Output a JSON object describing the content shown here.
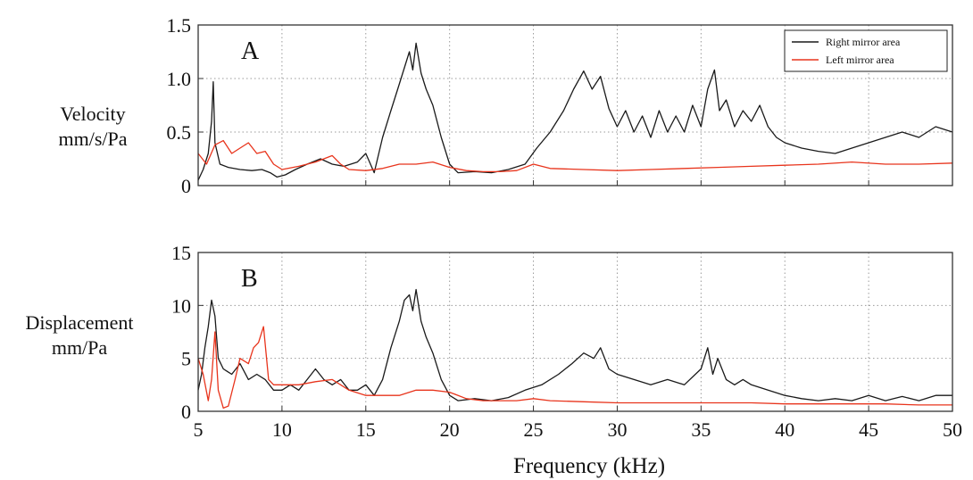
{
  "figure": {
    "xlabel": "Frequency (kHz)",
    "colors": {
      "series_1": "#1a1a1a",
      "series_2": "#e8341c",
      "grid": "#9a9a9a",
      "frame": "#333333"
    }
  },
  "panels": [
    {
      "letter": "A",
      "ylabel_line1": "Velocity",
      "ylabel_line2": "mm/s/Pa",
      "legend": [
        "Right mirror area",
        "Left mirror area"
      ]
    },
    {
      "letter": "B",
      "ylabel_line1": "Displacement",
      "ylabel_line2": "mm/Pa",
      "legend": []
    }
  ],
  "chart_data": [
    {
      "type": "line",
      "title": "A",
      "xlabel": "",
      "ylabel": "Velocity mm/s/Pa",
      "xlim": [
        5,
        50
      ],
      "ylim": [
        0,
        1.5
      ],
      "xticks": [
        5,
        10,
        15,
        20,
        25,
        30,
        35,
        40,
        45,
        50
      ],
      "yticks": [
        0,
        0.5,
        1.0,
        1.5
      ],
      "ytick_labels": [
        "0",
        "0.5",
        "1.0",
        "1.5"
      ],
      "grid": true,
      "legend_position": "top-right",
      "series": [
        {
          "name": "Right mirror area",
          "color": "#1a1a1a",
          "x": [
            5,
            5.3,
            5.6,
            5.8,
            5.9,
            6.0,
            6.3,
            6.8,
            7.5,
            8.2,
            8.8,
            9.3,
            9.7,
            10.2,
            10.8,
            11.5,
            12.3,
            13.0,
            13.7,
            14.5,
            15.0,
            15.5,
            16.0,
            16.5,
            16.9,
            17.3,
            17.6,
            17.8,
            18.0,
            18.3,
            18.6,
            19.0,
            19.5,
            20.0,
            20.5,
            21.5,
            22.5,
            23.5,
            24.5,
            25.2,
            26.0,
            26.8,
            27.4,
            28.0,
            28.5,
            29.0,
            29.5,
            30.0,
            30.5,
            31.0,
            31.5,
            32.0,
            32.5,
            33.0,
            33.5,
            34.0,
            34.5,
            35.0,
            35.4,
            35.8,
            36.1,
            36.5,
            37.0,
            37.5,
            38.0,
            38.5,
            39.0,
            39.5,
            40.0,
            41.0,
            42.0,
            43.0,
            44.0,
            45.0,
            46.0,
            47.0,
            48.0,
            49.0,
            50.0
          ],
          "y": [
            0.05,
            0.15,
            0.3,
            0.6,
            0.97,
            0.4,
            0.2,
            0.17,
            0.15,
            0.14,
            0.15,
            0.12,
            0.08,
            0.1,
            0.15,
            0.2,
            0.25,
            0.2,
            0.18,
            0.22,
            0.3,
            0.12,
            0.45,
            0.7,
            0.9,
            1.1,
            1.25,
            1.08,
            1.33,
            1.05,
            0.9,
            0.75,
            0.45,
            0.2,
            0.12,
            0.13,
            0.12,
            0.15,
            0.2,
            0.35,
            0.5,
            0.7,
            0.9,
            1.07,
            0.9,
            1.02,
            0.72,
            0.55,
            0.7,
            0.5,
            0.65,
            0.45,
            0.7,
            0.5,
            0.65,
            0.5,
            0.75,
            0.55,
            0.9,
            1.08,
            0.7,
            0.8,
            0.55,
            0.7,
            0.6,
            0.75,
            0.55,
            0.45,
            0.4,
            0.35,
            0.32,
            0.3,
            0.35,
            0.4,
            0.45,
            0.5,
            0.45,
            0.55,
            0.5
          ]
        },
        {
          "name": "Left mirror area",
          "color": "#e8341c",
          "x": [
            5,
            5.5,
            6.0,
            6.5,
            7.0,
            7.5,
            8.0,
            8.5,
            9.0,
            9.5,
            10.0,
            11.0,
            12.0,
            13.0,
            13.5,
            14.0,
            15.0,
            16.0,
            17.0,
            18.0,
            19.0,
            20.0,
            21.0,
            22.0,
            23.0,
            24.0,
            25.0,
            26.0,
            28.0,
            30.0,
            32.0,
            34.0,
            36.0,
            38.0,
            40.0,
            42.0,
            44.0,
            46.0,
            48.0,
            50.0
          ],
          "y": [
            0.3,
            0.2,
            0.38,
            0.42,
            0.3,
            0.35,
            0.4,
            0.3,
            0.32,
            0.2,
            0.15,
            0.18,
            0.22,
            0.28,
            0.2,
            0.15,
            0.14,
            0.16,
            0.2,
            0.2,
            0.22,
            0.17,
            0.14,
            0.13,
            0.13,
            0.14,
            0.2,
            0.16,
            0.15,
            0.14,
            0.15,
            0.16,
            0.17,
            0.18,
            0.19,
            0.2,
            0.22,
            0.2,
            0.2,
            0.21
          ]
        }
      ]
    },
    {
      "type": "line",
      "title": "B",
      "xlabel": "Frequency (kHz)",
      "ylabel": "Displacement mm/Pa",
      "xlim": [
        5,
        50
      ],
      "ylim": [
        0,
        15
      ],
      "xticks": [
        5,
        10,
        15,
        20,
        25,
        30,
        35,
        40,
        45,
        50
      ],
      "yticks": [
        0,
        5,
        10,
        15
      ],
      "ytick_labels": [
        "0",
        "5",
        "10",
        "15"
      ],
      "grid": true,
      "series": [
        {
          "name": "Right mirror area",
          "color": "#1a1a1a",
          "x": [
            5,
            5.2,
            5.4,
            5.6,
            5.8,
            6.0,
            6.2,
            6.5,
            7.0,
            7.5,
            8.0,
            8.5,
            9.0,
            9.5,
            10.0,
            10.5,
            11.0,
            11.5,
            12.0,
            12.5,
            13.0,
            13.5,
            14.0,
            14.5,
            15.0,
            15.5,
            16.0,
            16.5,
            17.0,
            17.3,
            17.6,
            17.8,
            18.0,
            18.3,
            18.6,
            19.0,
            19.5,
            20.0,
            20.5,
            21.5,
            22.5,
            23.5,
            24.5,
            25.5,
            26.5,
            27.3,
            28.0,
            28.6,
            29.0,
            29.5,
            30.0,
            31.0,
            32.0,
            33.0,
            34.0,
            35.0,
            35.4,
            35.7,
            36.0,
            36.5,
            37.0,
            37.5,
            38.0,
            39.0,
            40.0,
            41.0,
            42.0,
            43.0,
            44.0,
            45.0,
            46.0,
            47.0,
            48.0,
            49.0,
            50.0
          ],
          "y": [
            2.0,
            3.5,
            6.0,
            8.0,
            10.5,
            9.0,
            5.0,
            4.0,
            3.5,
            4.5,
            3.0,
            3.5,
            3.0,
            2.0,
            2.0,
            2.5,
            2.0,
            3.0,
            4.0,
            3.0,
            2.5,
            3.0,
            2.0,
            2.0,
            2.5,
            1.5,
            3.0,
            6.0,
            8.5,
            10.5,
            11.0,
            9.5,
            11.5,
            8.5,
            7.0,
            5.5,
            3.0,
            1.5,
            1.0,
            1.2,
            1.0,
            1.3,
            2.0,
            2.5,
            3.5,
            4.5,
            5.5,
            5.0,
            6.0,
            4.0,
            3.5,
            3.0,
            2.5,
            3.0,
            2.5,
            4.0,
            6.0,
            3.5,
            5.0,
            3.0,
            2.5,
            3.0,
            2.5,
            2.0,
            1.5,
            1.2,
            1.0,
            1.2,
            1.0,
            1.5,
            1.0,
            1.4,
            1.0,
            1.5,
            1.5
          ]
        },
        {
          "name": "Left mirror area",
          "color": "#e8341c",
          "x": [
            5,
            5.3,
            5.6,
            5.8,
            6.0,
            6.2,
            6.5,
            6.8,
            7.2,
            7.5,
            8.0,
            8.3,
            8.6,
            8.9,
            9.2,
            9.5,
            10.0,
            11.0,
            12.0,
            13.0,
            13.5,
            14.0,
            15.0,
            16.0,
            17.0,
            18.0,
            19.0,
            20.0,
            21.0,
            22.0,
            23.0,
            24.0,
            25.0,
            26.0,
            28.0,
            30.0,
            32.0,
            34.0,
            36.0,
            38.0,
            40.0,
            42.0,
            44.0,
            46.0,
            48.0,
            50.0
          ],
          "y": [
            5.0,
            3.5,
            1.0,
            3.0,
            7.5,
            2.0,
            0.3,
            0.5,
            3.0,
            5.0,
            4.5,
            6.0,
            6.5,
            8.0,
            3.0,
            2.5,
            2.5,
            2.5,
            2.8,
            3.0,
            2.5,
            2.0,
            1.5,
            1.5,
            1.5,
            2.0,
            2.0,
            1.8,
            1.2,
            1.0,
            1.0,
            1.0,
            1.2,
            1.0,
            0.9,
            0.8,
            0.8,
            0.8,
            0.8,
            0.8,
            0.7,
            0.7,
            0.7,
            0.7,
            0.6,
            0.6
          ]
        }
      ]
    }
  ]
}
